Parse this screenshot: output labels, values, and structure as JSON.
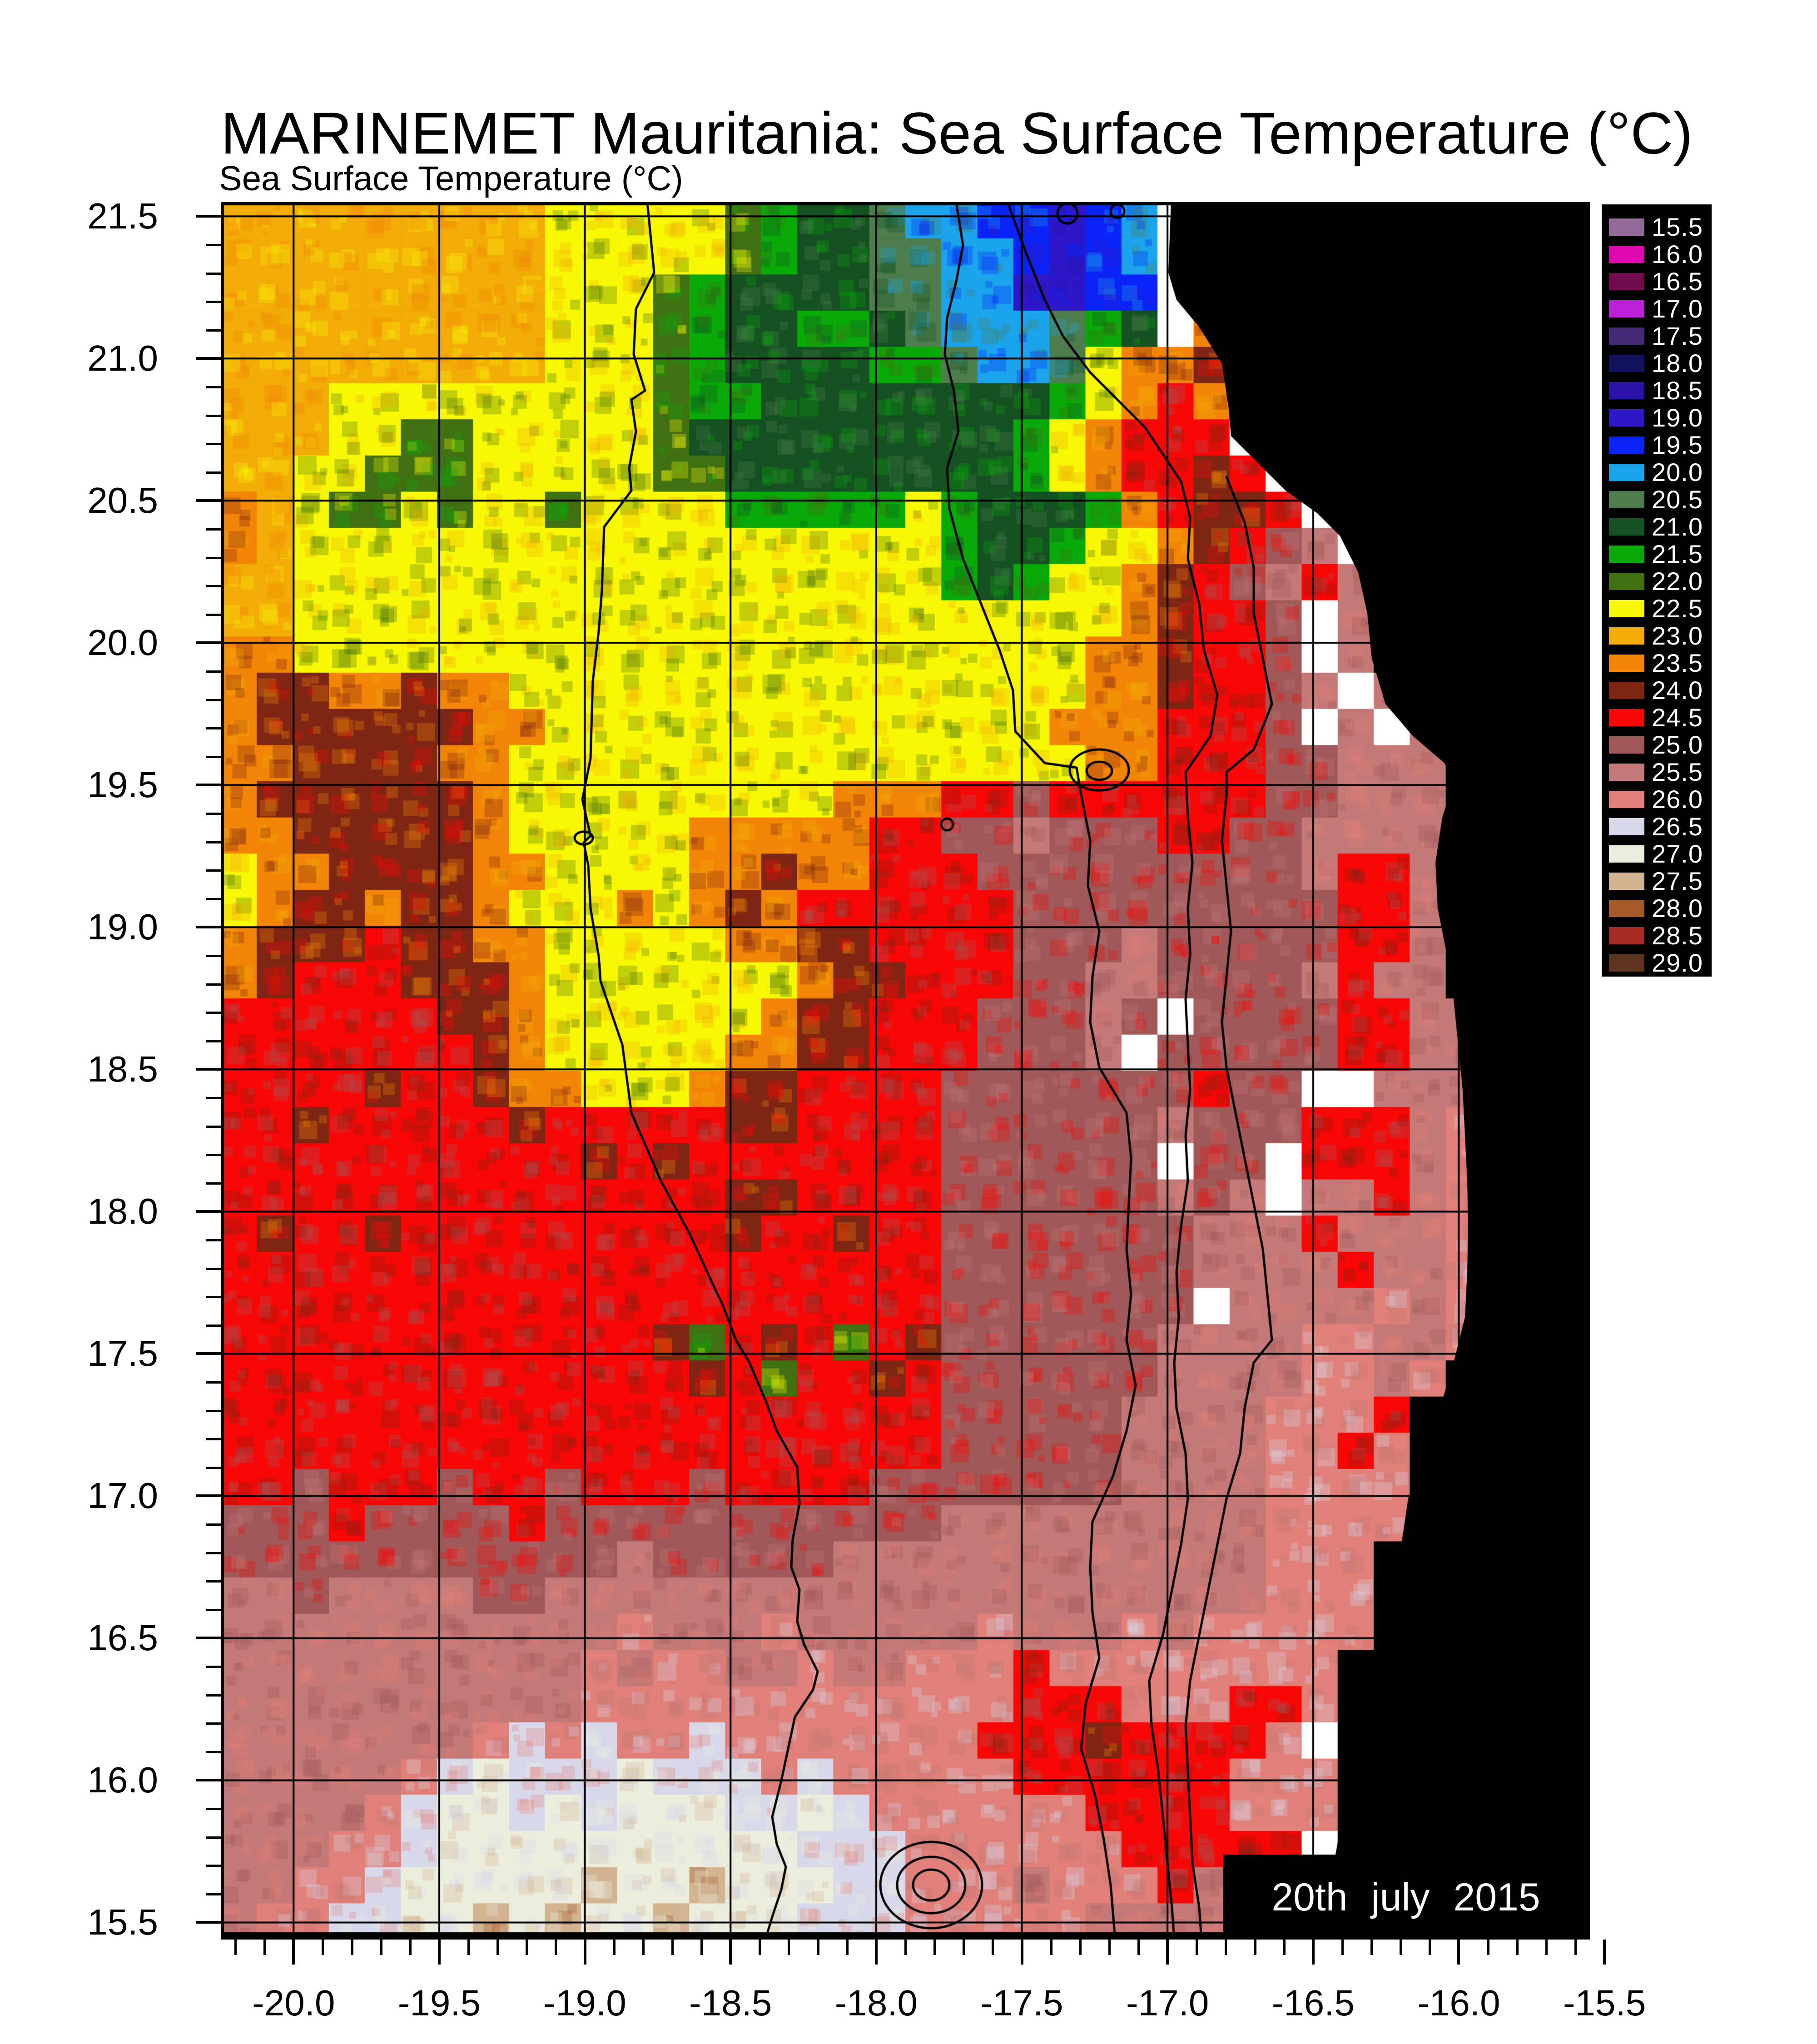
{
  "header": {
    "title": "MARINEMET Mauritania: Sea Surface Temperature (°C)",
    "subtitle": "Sea Surface Temperature (°C)"
  },
  "chart_data": {
    "type": "heatmap",
    "title": "MARINEMET Mauritania: Sea Surface Temperature (°C)",
    "unit": "°C",
    "date_label": "20th july 2015",
    "lon_range": [
      -20.25,
      -15.55
    ],
    "lat_range": [
      15.44,
      21.55
    ],
    "grid_on": true,
    "x_ticks": [
      {
        "v": -20.0,
        "label": "-20.0"
      },
      {
        "v": -19.5,
        "label": "-19.5"
      },
      {
        "v": -19.0,
        "label": "-19.0"
      },
      {
        "v": -18.5,
        "label": "-18.5"
      },
      {
        "v": -18.0,
        "label": "-18.0"
      },
      {
        "v": -17.5,
        "label": "-17.5"
      },
      {
        "v": -17.0,
        "label": "-17.0"
      },
      {
        "v": -16.5,
        "label": "-16.5"
      },
      {
        "v": -16.0,
        "label": "-16.0"
      },
      {
        "v": -15.5,
        "label": "-15.5"
      }
    ],
    "y_ticks": [
      {
        "v": 21.5,
        "label": "21.5"
      },
      {
        "v": 21.0,
        "label": "21.0"
      },
      {
        "v": 20.5,
        "label": "20.5"
      },
      {
        "v": 20.0,
        "label": "20.0"
      },
      {
        "v": 19.5,
        "label": "19.5"
      },
      {
        "v": 19.0,
        "label": "19.0"
      },
      {
        "v": 18.5,
        "label": "18.5"
      },
      {
        "v": 18.0,
        "label": "18.0"
      },
      {
        "v": 17.5,
        "label": "17.5"
      },
      {
        "v": 17.0,
        "label": "17.0"
      },
      {
        "v": 16.5,
        "label": "16.5"
      },
      {
        "v": 16.0,
        "label": "16.0"
      },
      {
        "v": 15.5,
        "label": "15.5"
      }
    ],
    "legend": [
      {
        "label": "15.5",
        "color": "#916a99"
      },
      {
        "label": "16.0",
        "color": "#e006ae"
      },
      {
        "label": "16.5",
        "color": "#720a4e"
      },
      {
        "label": "17.0",
        "color": "#bb1fd6"
      },
      {
        "label": "17.5",
        "color": "#472a75"
      },
      {
        "label": "18.0",
        "color": "#11115e"
      },
      {
        "label": "18.5",
        "color": "#2a12a8"
      },
      {
        "label": "19.0",
        "color": "#2d17c9"
      },
      {
        "label": "19.5",
        "color": "#0a24f7"
      },
      {
        "label": "20.0",
        "color": "#1ba4ec"
      },
      {
        "label": "20.5",
        "color": "#4d7d4d"
      },
      {
        "label": "21.0",
        "color": "#155022"
      },
      {
        "label": "21.5",
        "color": "#09a909"
      },
      {
        "label": "22.0",
        "color": "#417012"
      },
      {
        "label": "22.5",
        "color": "#f8f805"
      },
      {
        "label": "23.0",
        "color": "#f3ab06"
      },
      {
        "label": "23.5",
        "color": "#f28406"
      },
      {
        "label": "24.0",
        "color": "#7e2613"
      },
      {
        "label": "24.5",
        "color": "#f90606"
      },
      {
        "label": "25.0",
        "color": "#a05858"
      },
      {
        "label": "25.5",
        "color": "#c57878"
      },
      {
        "label": "26.0",
        "color": "#e08078"
      },
      {
        "label": "26.5",
        "color": "#d8d8ea"
      },
      {
        "label": "27.0",
        "color": "#eceedd"
      },
      {
        "label": "27.5",
        "color": "#d2b492"
      },
      {
        "label": "28.0",
        "color": "#a55a28"
      },
      {
        "label": "28.5",
        "color": "#a52a26"
      },
      {
        "label": "29.0",
        "color": "#5c3420"
      }
    ],
    "palette_order": "abcdefghijklmnopqrstuvwxyz12",
    "land_color": "#000000",
    "no_data_color": "#ffffff",
    "grid_cols": 38,
    "grid_rows": 48,
    "sst_grid": [
      "pppppppppooooonmllkjjiihij.###########",
      "pppppppppooooonmllkkjjihij.###########",
      "pppppppppooonmllllkkjjhhii.###########",
      "pppppppppooonmllmmlkjjjkml.q##########",
      "pppppppppooonmllllmmkjjkoqqr##########",
      "pppooooooooonmmllllllllmoqsq##########",
      "pppoonnooooonlllllllllmoqsss.#########",
      "ppoonnnooooonnllllllllmoqssrs.########",
      "qponnonoonoooommmmmomlllmqsrrs.#######",
      "qpoooooooooooooooooomllmooqrstu.######",
      "ppoooooooooooooooooomlmooqrstusu######",
      "ppoooooooooooooooooooooooqrsst.u######",
      "qqooooooooooooooooooooooqqrsst.u######",
      "qrrqqrqqooooooooooooooooqqrsstu.u#####",
      "qrrrrrrqqooooooooooooooqqqssst.u.u####",
      "qqrrrrqqooooooooooooooooqqsssttuuu####",
      "qrrrrrrqoooooooooqqqsstssssssttuuu####",
      "qqrrrrrqoooooqqqqqssttutttssttuuuu####",
      "oqqrrrrqqooooqqrqqssstttttttttussu####",
      "oqrrqrrqoooqoqrqsssssstttttttttssu####",
      "qrrrsrrqqoooooqqrrsssstttutttttssu####",
      "qrsssrrrqoooooooqrrsssttuuttttusuu####",
      "ssssssrrqooooooqrrssstttut.ttttssuu###",
      "sssssssrqoooooqqrrssstttu.tttttssuu###",
      "ssssrssrqqoooqrrsssstttttttstt..uuu###",
      "ssrsssssrsssssrrssssttttttutttsssuv###",
      "ssssssssssrsrssssssstttttt.tt.sssuv###",
      "ssssssssssssssrrssssttttttutu.uusuv###",
      "srssrsssssssssrssrsstttttttuuusuuuv###",
      "sssssssssssssssssssstttttttuuuusuuv###",
      "ssssssssssssssssssssttttttt.uuuuvuv###",
      "ssssssssssssrnsrsnsrttttttuuuuvvuuv###",
      "sssssssssssssrsnssrsttttttuuuuvvuv####",
      "sssssssssssssssssssstttttuuuuvvvs#####",
      "sssssssssssssssssssstttttuuuuvvsv#####",
      "sstssstsstssstsssstttttttuuuuvvvv#####",
      "tttsttttstttttttttttuuuuuuuuuvvvv#####",
      "tttttttttttutttttuuuuuuuuuuuuvvv######",
      "uutuuuuttuuuuuuuuuuuuuuuuuuuuvvv######",
      "uuuuuuuuuuuvuuuvuuuuuvuuuvuvvvvv######",
      "uuuuuuuuuuvuvvuuvuuvvvsvvvvvvvv#######",
      "uuuuuuuuuuvvvvvvvvvvvvsssvvvssv#######",
      "uuuuuuuvwvwvvwvvvvvvvsssrssssv.#######",
      "uuuuuvwxwwwxwwwvwvvvvvssssssvvv#######",
      "uuuuvwxxwxwxxxwwxwvvvvvvssssvvv#######",
      "uuuvvwxxxxxxxxxxwwwvvvvvvsssss.#######",
      "uuvvwxxxxxyxxyxxxwwvvvuvvvsu##########",
      "uvvwwxxyxyxxyxxxwwwvvvvvuuuu##########"
    ],
    "contours": [
      [
        939,
        0,
        954,
        155,
        914,
        235,
        909,
        335,
        934,
        415,
        904,
        435,
        914,
        505,
        899,
        585,
        904,
        635,
        844,
        715,
        839,
        855,
        832,
        945,
        819,
        1055,
        814,
        1225,
        796,
        1315,
        814,
        1395,
        799,
        1410,
        809,
        1460,
        814,
        1555,
        832,
        1660,
        836,
        1715,
        884,
        1855,
        904,
        2005,
        969,
        2155,
        1034,
        2275,
        1089,
        2395,
        1104,
        2425,
        1134,
        2505,
        1164,
        2555,
        1202,
        2645,
        1224,
        2705,
        1269,
        2785,
        1274,
        2865,
        1259,
        2945,
        1256,
        3005,
        1274,
        3055,
        1269,
        3125,
        1284,
        3175,
        1314,
        3235,
        1304,
        3275,
        1264,
        3335,
        1249,
        3405,
        1234,
        3475,
        1214,
        3555,
        1224,
        3615,
        1244,
        3665,
        1234,
        3715,
        1214,
        3775,
        1199,
        3825
      ],
      [
        1619,
        0,
        1634,
        95,
        1619,
        175,
        1599,
        255,
        1594,
        335,
        1614,
        415,
        1624,
        505,
        1599,
        585,
        1604,
        675,
        1634,
        785,
        1674,
        885,
        1714,
        985,
        1744,
        1075,
        1749,
        1165,
        1814,
        1235,
        1884,
        1245,
        1894,
        1305,
        1914,
        1405,
        1909,
        1505,
        1934,
        1605,
        1919,
        1705,
        1914,
        1805,
        1934,
        1905,
        1994,
        2005,
        2004,
        2105,
        1999,
        2205,
        1994,
        2305,
        2004,
        2405,
        1994,
        2505,
        2014,
        2605,
        1994,
        2705,
        1964,
        2805,
        1919,
        2905,
        1914,
        3005,
        1919,
        3105,
        1934,
        3205,
        1904,
        3305,
        1894,
        3405,
        1924,
        3505,
        1944,
        3605,
        1959,
        3705,
        1969,
        3825
      ],
      [
        1732,
        0,
        1774,
        115,
        1814,
        215,
        1854,
        295,
        1914,
        375,
        1974,
        435,
        2034,
        495,
        2074,
        555,
        2114,
        615,
        2134,
        695,
        2129,
        785,
        2154,
        885,
        2164,
        985,
        2194,
        1085,
        2179,
        1175,
        2124,
        1255,
        2129,
        1355,
        2139,
        1455,
        2129,
        1555,
        2134,
        1655,
        2124,
        1755,
        2129,
        1855,
        2134,
        1955,
        2124,
        2055,
        2129,
        2155,
        2114,
        2255,
        2104,
        2355,
        2109,
        2455,
        2099,
        2555,
        2104,
        2655,
        2124,
        2755,
        2129,
        2855,
        2114,
        2955,
        2094,
        3055,
        2074,
        3155,
        2044,
        3255,
        2049,
        3355,
        2064,
        3455,
        2074,
        3555,
        2084,
        3655,
        2094,
        3755,
        2099,
        3825
      ],
      [
        2214,
        605,
        2254,
        705,
        2274,
        805,
        2274,
        905,
        2294,
        1005,
        2314,
        1105,
        2274,
        1205,
        2214,
        1255,
        2214,
        1305,
        2204,
        1405,
        2214,
        1505,
        2224,
        1605,
        2214,
        1705,
        2204,
        1805,
        2214,
        1905,
        2234,
        2005,
        2254,
        2105,
        2274,
        2205,
        2294,
        2305,
        2304,
        2405,
        2314,
        2505,
        2274,
        2555,
        2254,
        2655,
        2244,
        2755,
        2214,
        2855,
        2194,
        2955,
        2174,
        3055,
        2154,
        3155,
        2134,
        3255,
        2124,
        3355,
        2129,
        3455,
        2134,
        3555,
        2139,
        3655,
        2154,
        3755,
        2159,
        3825
      ]
    ],
    "contour_ellipses": [
      {
        "cx": 1934,
        "cy": 1250,
        "rx": 65,
        "ry": 45
      },
      {
        "cx": 1934,
        "cy": 1252,
        "rx": 28,
        "ry": 20
      },
      {
        "cx": 1864,
        "cy": 25,
        "rx": 22,
        "ry": 22
      },
      {
        "cx": 1974,
        "cy": 20,
        "rx": 15,
        "ry": 15
      },
      {
        "cx": 1599,
        "cy": 1370,
        "rx": 13,
        "ry": 13
      },
      {
        "cx": 799,
        "cy": 1400,
        "rx": 20,
        "ry": 14
      },
      {
        "cx": 1564,
        "cy": 3705,
        "rx": 40,
        "ry": 34
      },
      {
        "cx": 1564,
        "cy": 3705,
        "rx": 75,
        "ry": 62
      },
      {
        "cx": 1564,
        "cy": 3705,
        "rx": 112,
        "ry": 95
      }
    ],
    "land_polygon": [
      2092,
      0,
      3014,
      0,
      3014,
      3825,
      2207,
      3825,
      2207,
      3638,
      2454,
      3638,
      2469,
      3555,
      2489,
      3455,
      2509,
      3355,
      2534,
      3255,
      2564,
      3155,
      2584,
      3055,
      2599,
      2955,
      2614,
      2855,
      2644,
      2755,
      2684,
      2655,
      2714,
      2555,
      2739,
      2455,
      2744,
      2355,
      2746,
      2255,
      2744,
      2155,
      2739,
      2055,
      2734,
      1955,
      2724,
      1855,
      2714,
      1755,
      2699,
      1655,
      2679,
      1555,
      2674,
      1455,
      2689,
      1355,
      2714,
      1275,
      2694,
      1235,
      2624,
      1175,
      2564,
      1105,
      2534,
      1005,
      2524,
      905,
      2504,
      815,
      2464,
      735,
      2414,
      685,
      2344,
      635,
      2274,
      565,
      2224,
      515,
      2219,
      455,
      2204,
      355,
      2154,
      275,
      2104,
      215,
      2086,
      155
    ]
  }
}
